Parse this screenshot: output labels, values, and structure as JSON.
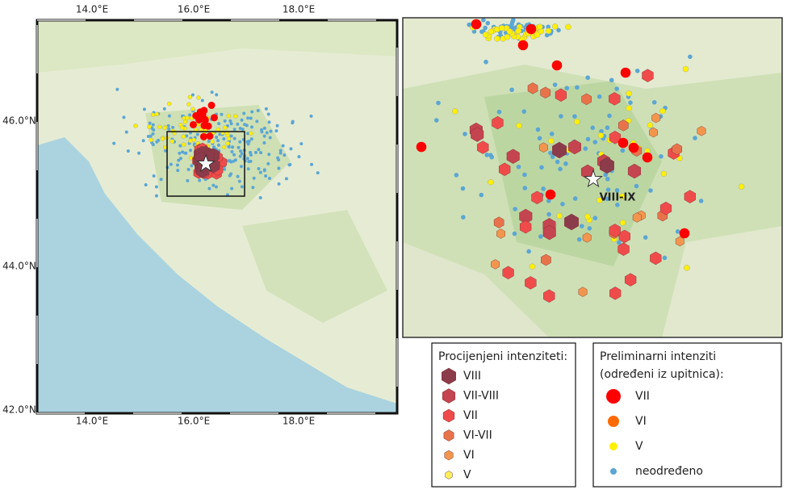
{
  "map": {
    "x_ticks": [
      "14.0°E",
      "16.0°E",
      "18.0°E"
    ],
    "y_ticks": [
      "46.0°N",
      "44.0°N",
      "42.0°N"
    ],
    "inset_label": "VIII-IX"
  },
  "legend_estimated": {
    "title": "Procijenjeni intenziteti:",
    "items": [
      "VIII",
      "VII-VIII",
      "VII",
      "VI-VII",
      "VI",
      "V"
    ]
  },
  "legend_preliminary": {
    "title_lines": [
      "Preliminarni intenziti",
      "(određeni iz upitnica):"
    ],
    "items": [
      "VII",
      "VI",
      "V",
      "neodređeno"
    ]
  }
}
